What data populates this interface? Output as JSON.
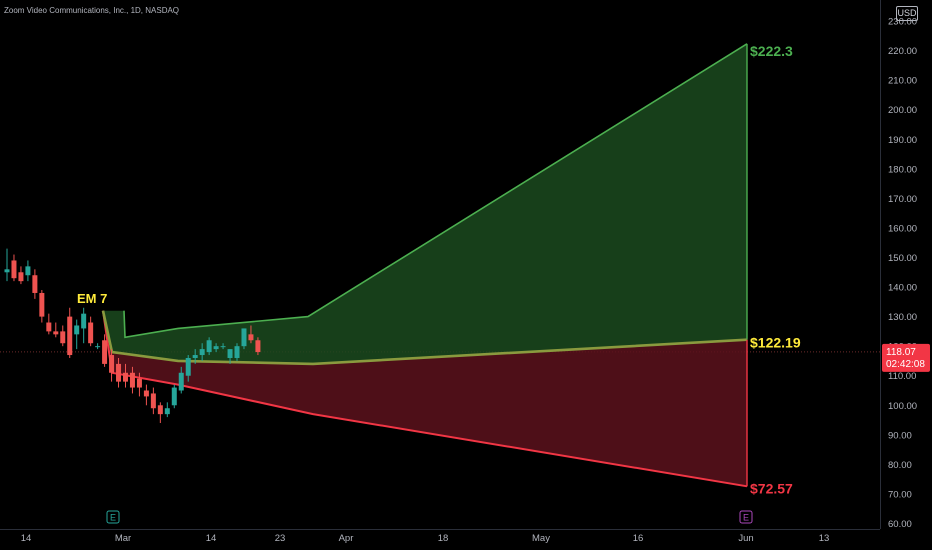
{
  "header": {
    "symbol_title": "Zoom Video Communications, Inc., 1D, NASDAQ",
    "currency": "USD"
  },
  "colors": {
    "background": "#000000",
    "axis_text": "#b2b5be",
    "up_candle": "#26a69a",
    "down_candle": "#ef5350",
    "upper_band": "#4caf50",
    "upper_fill": "#1b4a1e",
    "lower_band": "#f23645",
    "lower_fill": "#5c121c",
    "mid_line": "#8a9a3e",
    "upper_label": "#4caf50",
    "mid_label": "#ffeb3b",
    "lower_label": "#f23645",
    "annotation": "#ffeb3b",
    "price_tag": "#f23645",
    "current_price_line": "#6b2a2a"
  },
  "chart_data": {
    "type": "candlestick",
    "y_axis": {
      "ticks": [
        60,
        70,
        80,
        90,
        100,
        110,
        120,
        130,
        140,
        150,
        160,
        170,
        180,
        190,
        200,
        210,
        220,
        230
      ],
      "tick_labels": [
        "60.00",
        "70.00",
        "80.00",
        "90.00",
        "100.00",
        "110.00",
        "120.00",
        "130.00",
        "140.00",
        "150.00",
        "160.00",
        "170.00",
        "180.00",
        "190.00",
        "200.00",
        "210.00",
        "220.00",
        "230.00"
      ],
      "range": [
        60,
        235
      ]
    },
    "x_axis": {
      "labels": [
        "14",
        "Mar",
        "14",
        "23",
        "Apr",
        "18",
        "May",
        "16",
        "Jun",
        "13"
      ]
    },
    "current_price": {
      "value": 118.07,
      "label": "118.07",
      "countdown": "02:42:08"
    },
    "candles": [
      {
        "o": 145,
        "h": 153,
        "l": 142,
        "c": 146
      },
      {
        "o": 149,
        "h": 151,
        "l": 142,
        "c": 143
      },
      {
        "o": 145,
        "h": 147,
        "l": 141,
        "c": 142
      },
      {
        "o": 144,
        "h": 149,
        "l": 142,
        "c": 147
      },
      {
        "o": 144,
        "h": 146,
        "l": 136,
        "c": 138
      },
      {
        "o": 138,
        "h": 139,
        "l": 128,
        "c": 130
      },
      {
        "o": 128,
        "h": 131,
        "l": 124,
        "c": 125
      },
      {
        "o": 125,
        "h": 128,
        "l": 123,
        "c": 124
      },
      {
        "o": 125,
        "h": 127,
        "l": 120,
        "c": 121
      },
      {
        "o": 130,
        "h": 133,
        "l": 116,
        "c": 117
      },
      {
        "o": 124,
        "h": 129,
        "l": 119,
        "c": 127
      },
      {
        "o": 126,
        "h": 133,
        "l": 121,
        "c": 131
      },
      {
        "o": 128,
        "h": 130,
        "l": 120,
        "c": 121
      },
      {
        "o": 120,
        "h": 121,
        "l": 119,
        "c": 120
      },
      {
        "o": 122,
        "h": 124,
        "l": 113,
        "c": 114
      },
      {
        "o": 117,
        "h": 119,
        "l": 108,
        "c": 111
      },
      {
        "o": 114,
        "h": 116,
        "l": 106,
        "c": 108
      },
      {
        "o": 111,
        "h": 114,
        "l": 106,
        "c": 108
      },
      {
        "o": 111,
        "h": 113,
        "l": 104,
        "c": 106
      },
      {
        "o": 109,
        "h": 111,
        "l": 103,
        "c": 106
      },
      {
        "o": 105,
        "h": 107,
        "l": 100,
        "c": 103
      },
      {
        "o": 104,
        "h": 106,
        "l": 97,
        "c": 99
      },
      {
        "o": 100,
        "h": 101,
        "l": 94,
        "c": 97
      },
      {
        "o": 97,
        "h": 101,
        "l": 96,
        "c": 99
      },
      {
        "o": 100,
        "h": 107,
        "l": 99,
        "c": 106
      },
      {
        "o": 105,
        "h": 113,
        "l": 104,
        "c": 111
      },
      {
        "o": 110,
        "h": 117,
        "l": 108,
        "c": 116
      },
      {
        "o": 116,
        "h": 119,
        "l": 114,
        "c": 117
      },
      {
        "o": 117,
        "h": 121,
        "l": 115,
        "c": 119
      },
      {
        "o": 118,
        "h": 123,
        "l": 117,
        "c": 122
      },
      {
        "o": 119,
        "h": 121,
        "l": 118,
        "c": 120
      },
      {
        "o": 120,
        "h": 121,
        "l": 119,
        "c": 120
      },
      {
        "o": 116,
        "h": 119,
        "l": 114,
        "c": 119
      },
      {
        "o": 116,
        "h": 121,
        "l": 115,
        "c": 120
      },
      {
        "o": 120,
        "h": 126,
        "l": 119,
        "c": 126
      },
      {
        "o": 124,
        "h": 127,
        "l": 121,
        "c": 122
      },
      {
        "o": 122,
        "h": 123,
        "l": 117,
        "c": 118
      }
    ],
    "expected_move": {
      "label": "EM 7",
      "upper_band": [
        [
          124,
          132
        ],
        [
          125,
          123
        ],
        [
          178,
          126
        ],
        [
          308,
          130
        ],
        [
          747,
          222.3
        ]
      ],
      "lower_band": [
        [
          103,
          132
        ],
        [
          112,
          111
        ],
        [
          178,
          107
        ],
        [
          313,
          97
        ],
        [
          747,
          72.57
        ]
      ],
      "mid_band": [
        [
          103,
          132
        ],
        [
          112,
          118
        ],
        [
          178,
          115
        ],
        [
          313,
          114
        ],
        [
          747,
          122.19
        ]
      ],
      "end_labels": {
        "upper": "$222.3",
        "mid": "$122.19",
        "lower": "$72.57"
      }
    },
    "event_markers": [
      {
        "letter": "E",
        "color": "#26a69a"
      },
      {
        "letter": "E",
        "color": "#ab47bc"
      }
    ]
  }
}
